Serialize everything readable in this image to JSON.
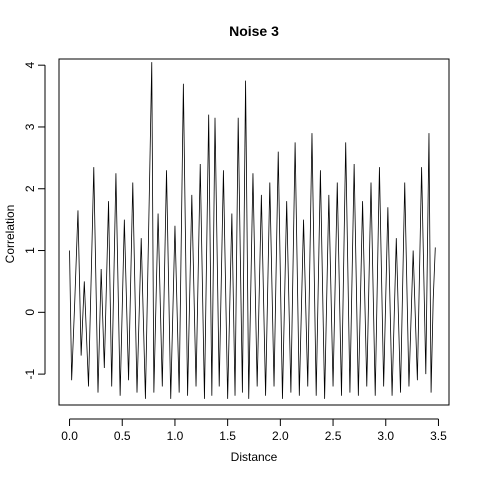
{
  "chart_data": {
    "type": "line",
    "title": "Noise 3",
    "xlabel": "Distance",
    "ylabel": "Correlation",
    "xlim": [
      -0.1,
      3.6
    ],
    "ylim": [
      -1.5,
      4.1
    ],
    "x_ticks": [
      "0.0",
      "0.5",
      "1.0",
      "1.5",
      "2.0",
      "2.5",
      "3.0",
      "3.5"
    ],
    "y_ticks": [
      "-1",
      "0",
      "1",
      "2",
      "3",
      "4"
    ],
    "grid": false,
    "legend": "none",
    "line_color": "#000000",
    "series": [
      {
        "x": [
          0.0,
          0.02,
          0.05,
          0.08,
          0.11,
          0.14,
          0.18,
          0.21,
          0.23,
          0.27,
          0.3,
          0.33,
          0.37,
          0.4,
          0.44,
          0.48,
          0.52,
          0.56,
          0.6,
          0.64,
          0.68,
          0.72,
          0.76,
          0.78,
          0.8,
          0.84,
          0.88,
          0.92,
          0.96,
          1.0,
          1.04,
          1.08,
          1.12,
          1.16,
          1.2,
          1.24,
          1.28,
          1.32,
          1.35,
          1.38,
          1.42,
          1.46,
          1.5,
          1.54,
          1.57,
          1.6,
          1.64,
          1.67,
          1.7,
          1.74,
          1.78,
          1.82,
          1.86,
          1.9,
          1.94,
          1.98,
          2.02,
          2.06,
          2.1,
          2.14,
          2.18,
          2.22,
          2.26,
          2.3,
          2.34,
          2.38,
          2.42,
          2.46,
          2.5,
          2.54,
          2.58,
          2.62,
          2.66,
          2.7,
          2.74,
          2.78,
          2.82,
          2.86,
          2.9,
          2.94,
          2.98,
          3.02,
          3.06,
          3.1,
          3.14,
          3.18,
          3.22,
          3.26,
          3.3,
          3.34,
          3.38,
          3.41,
          3.43,
          3.45,
          3.47
        ],
        "y": [
          1.0,
          -1.1,
          0.2,
          1.65,
          -0.7,
          0.5,
          -1.2,
          0.9,
          2.35,
          -1.3,
          0.7,
          -0.9,
          1.8,
          -1.2,
          2.25,
          -1.35,
          1.5,
          -1.1,
          2.1,
          -1.3,
          1.2,
          -1.4,
          2.2,
          4.05,
          -1.3,
          1.6,
          -1.2,
          2.3,
          -1.4,
          1.4,
          -1.3,
          3.7,
          -1.35,
          1.9,
          -1.2,
          2.4,
          -1.4,
          3.2,
          -1.35,
          3.15,
          -1.2,
          2.3,
          -1.4,
          1.6,
          -1.35,
          3.15,
          -1.3,
          3.75,
          -1.4,
          2.25,
          -1.2,
          1.9,
          -1.35,
          2.1,
          -1.2,
          2.6,
          -1.4,
          1.8,
          -1.3,
          2.75,
          -1.35,
          1.5,
          -1.2,
          2.9,
          -1.35,
          2.3,
          -1.4,
          1.9,
          -1.2,
          2.1,
          -1.35,
          2.75,
          -1.3,
          2.4,
          -1.35,
          1.8,
          -1.2,
          2.1,
          -1.35,
          2.35,
          -1.2,
          1.7,
          -1.35,
          1.2,
          -1.3,
          2.1,
          -1.2,
          1.0,
          -1.1,
          2.35,
          -1.0,
          2.9,
          -1.3,
          0.2,
          1.05
        ]
      }
    ]
  }
}
